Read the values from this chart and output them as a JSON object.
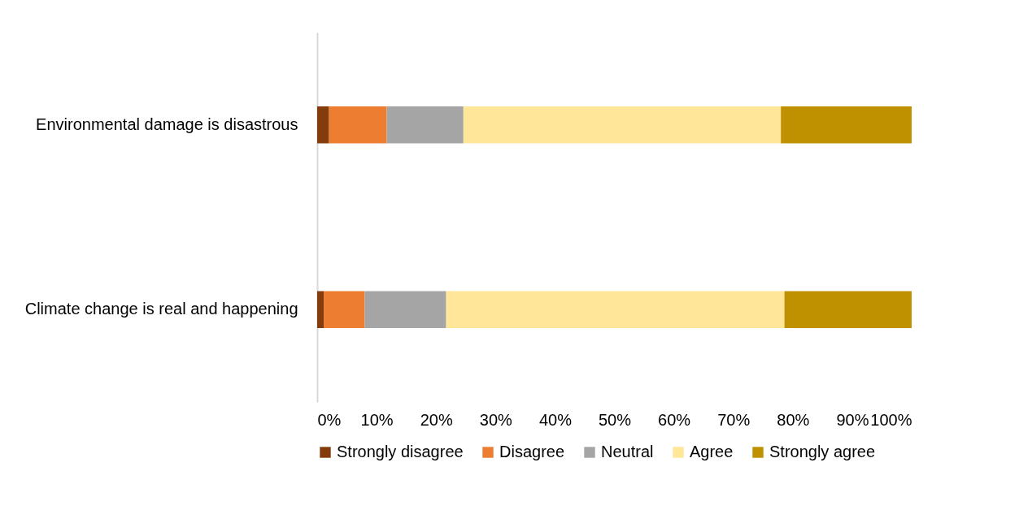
{
  "chart_data": {
    "type": "bar",
    "orientation": "horizontal",
    "stacked": true,
    "categories": [
      "Environmental damage is disastrous",
      "Climate change is real and happening"
    ],
    "series": [
      {
        "name": "Strongly disagree",
        "color": "#843c0c",
        "values": [
          2.0,
          1.1
        ]
      },
      {
        "name": "Disagree",
        "color": "#ed7d31",
        "values": [
          9.7,
          6.9
        ]
      },
      {
        "name": "Neutral",
        "color": "#a5a5a5",
        "values": [
          12.9,
          13.7
        ]
      },
      {
        "name": "Agree",
        "color": "#ffe699",
        "values": [
          53.4,
          56.9
        ]
      },
      {
        "name": "Strongly agree",
        "color": "#bf9000",
        "values": [
          22.0,
          21.4
        ]
      }
    ],
    "xlim": [
      0,
      100
    ],
    "xticks": [
      {
        "value": 0,
        "label": "0%"
      },
      {
        "value": 10,
        "label": "10%"
      },
      {
        "value": 20,
        "label": "20%"
      },
      {
        "value": 30,
        "label": "30%"
      },
      {
        "value": 40,
        "label": "40%"
      },
      {
        "value": 50,
        "label": "50%"
      },
      {
        "value": 60,
        "label": "60%"
      },
      {
        "value": 70,
        "label": "70%"
      },
      {
        "value": 80,
        "label": "80%"
      },
      {
        "value": 90,
        "label": "90%"
      },
      {
        "value": 100,
        "label": "100%"
      }
    ],
    "grid": false,
    "legend": "bottom"
  }
}
